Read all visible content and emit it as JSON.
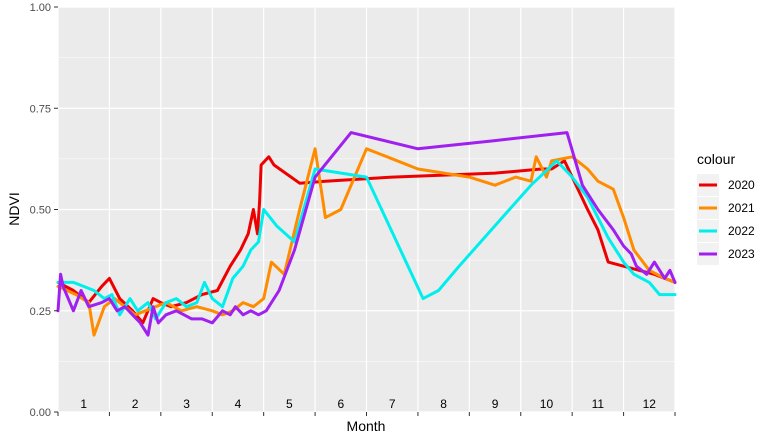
{
  "chart_data": {
    "type": "line",
    "xlabel": "Month",
    "ylabel": "NDVI",
    "ylim": [
      0,
      1
    ],
    "yticks": [
      "0.00",
      "0.25",
      "0.50",
      "0.75",
      "1.00"
    ],
    "ytick_values": [
      0,
      0.25,
      0.5,
      0.75,
      1.0
    ],
    "xlim": [
      0,
      12
    ],
    "months": [
      "1",
      "2",
      "3",
      "4",
      "5",
      "6",
      "7",
      "8",
      "9",
      "10",
      "11",
      "12"
    ],
    "grid": true,
    "legend": {
      "title": "colour",
      "position": "right"
    },
    "series": [
      {
        "name": "2020",
        "color": "#ee0000",
        "x": [
          0,
          0.3,
          0.6,
          0.85,
          1.0,
          1.2,
          1.45,
          1.65,
          1.85,
          2.0,
          2.2,
          2.5,
          2.8,
          3.1,
          3.35,
          3.55,
          3.7,
          3.8,
          3.88,
          3.92,
          3.95,
          4.1,
          4.2,
          4.7,
          5.2,
          6.5,
          7.5,
          8.5,
          9.4,
          9.6,
          9.85,
          10.3,
          10.5,
          10.7,
          11.0,
          11.3,
          11.6,
          12.0
        ],
        "y": [
          0.32,
          0.3,
          0.27,
          0.31,
          0.33,
          0.28,
          0.25,
          0.22,
          0.28,
          0.27,
          0.26,
          0.27,
          0.29,
          0.3,
          0.36,
          0.4,
          0.44,
          0.5,
          0.44,
          0.52,
          0.61,
          0.63,
          0.61,
          0.565,
          0.57,
          0.58,
          0.585,
          0.59,
          0.6,
          0.6,
          0.62,
          0.5,
          0.45,
          0.37,
          0.36,
          0.35,
          0.34,
          0.32
        ]
      },
      {
        "name": "2021",
        "color": "#ff8c00",
        "x": [
          0,
          0.35,
          0.6,
          0.7,
          0.9,
          1.1,
          1.3,
          1.5,
          1.7,
          1.9,
          2.1,
          2.4,
          2.7,
          3.0,
          3.2,
          3.4,
          3.6,
          3.8,
          4.0,
          4.15,
          4.4,
          4.7,
          5.0,
          5.2,
          5.5,
          6.0,
          6.4,
          7.0,
          8.0,
          8.5,
          8.9,
          9.2,
          9.3,
          9.5,
          9.6,
          10.0,
          10.3,
          10.5,
          10.8,
          11.0,
          11.2,
          11.5,
          11.8,
          12.0
        ],
        "y": [
          0.31,
          0.29,
          0.27,
          0.19,
          0.26,
          0.28,
          0.26,
          0.24,
          0.25,
          0.26,
          0.27,
          0.25,
          0.26,
          0.25,
          0.24,
          0.25,
          0.27,
          0.26,
          0.28,
          0.37,
          0.34,
          0.5,
          0.65,
          0.48,
          0.5,
          0.65,
          0.63,
          0.6,
          0.58,
          0.56,
          0.58,
          0.57,
          0.63,
          0.58,
          0.62,
          0.63,
          0.6,
          0.57,
          0.55,
          0.48,
          0.4,
          0.35,
          0.33,
          0.32
        ]
      },
      {
        "name": "2022",
        "color": "#00eeee",
        "x": [
          0,
          0.3,
          0.5,
          0.7,
          0.9,
          1.05,
          1.2,
          1.4,
          1.55,
          1.75,
          1.9,
          2.1,
          2.3,
          2.5,
          2.7,
          2.85,
          3.0,
          3.2,
          3.4,
          3.6,
          3.75,
          3.9,
          4.0,
          4.25,
          4.6,
          5.0,
          6.0,
          7.1,
          7.4,
          7.8,
          8.5,
          9.2,
          9.7,
          10.0,
          10.3,
          10.5,
          10.7,
          11.0,
          11.2,
          11.5,
          11.7,
          12.0
        ],
        "y": [
          0.32,
          0.32,
          0.31,
          0.3,
          0.28,
          0.29,
          0.24,
          0.28,
          0.25,
          0.27,
          0.23,
          0.27,
          0.28,
          0.26,
          0.27,
          0.32,
          0.28,
          0.26,
          0.33,
          0.36,
          0.4,
          0.42,
          0.5,
          0.46,
          0.42,
          0.6,
          0.58,
          0.28,
          0.3,
          0.36,
          0.46,
          0.56,
          0.62,
          0.58,
          0.53,
          0.48,
          0.43,
          0.37,
          0.34,
          0.32,
          0.29,
          0.29
        ]
      },
      {
        "name": "2023",
        "color": "#a020f0",
        "x": [
          0,
          0.05,
          0.1,
          0.3,
          0.45,
          0.6,
          0.85,
          1.0,
          1.15,
          1.3,
          1.45,
          1.6,
          1.75,
          1.85,
          1.95,
          2.1,
          2.3,
          2.45,
          2.6,
          2.8,
          3.0,
          3.2,
          3.35,
          3.45,
          3.6,
          3.75,
          3.9,
          4.05,
          4.3,
          4.6,
          5.0,
          5.7,
          7.0,
          8.5,
          9.9,
          10.2,
          10.5,
          10.8,
          11.0,
          11.15,
          11.25,
          11.45,
          11.6,
          11.8,
          11.9,
          12.0
        ],
        "y": [
          0.25,
          0.34,
          0.31,
          0.25,
          0.3,
          0.26,
          0.27,
          0.28,
          0.25,
          0.26,
          0.24,
          0.22,
          0.19,
          0.26,
          0.22,
          0.24,
          0.25,
          0.24,
          0.23,
          0.23,
          0.22,
          0.25,
          0.24,
          0.26,
          0.24,
          0.25,
          0.24,
          0.25,
          0.3,
          0.4,
          0.58,
          0.69,
          0.65,
          0.67,
          0.69,
          0.56,
          0.5,
          0.45,
          0.41,
          0.39,
          0.36,
          0.34,
          0.37,
          0.33,
          0.35,
          0.32
        ]
      }
    ]
  }
}
